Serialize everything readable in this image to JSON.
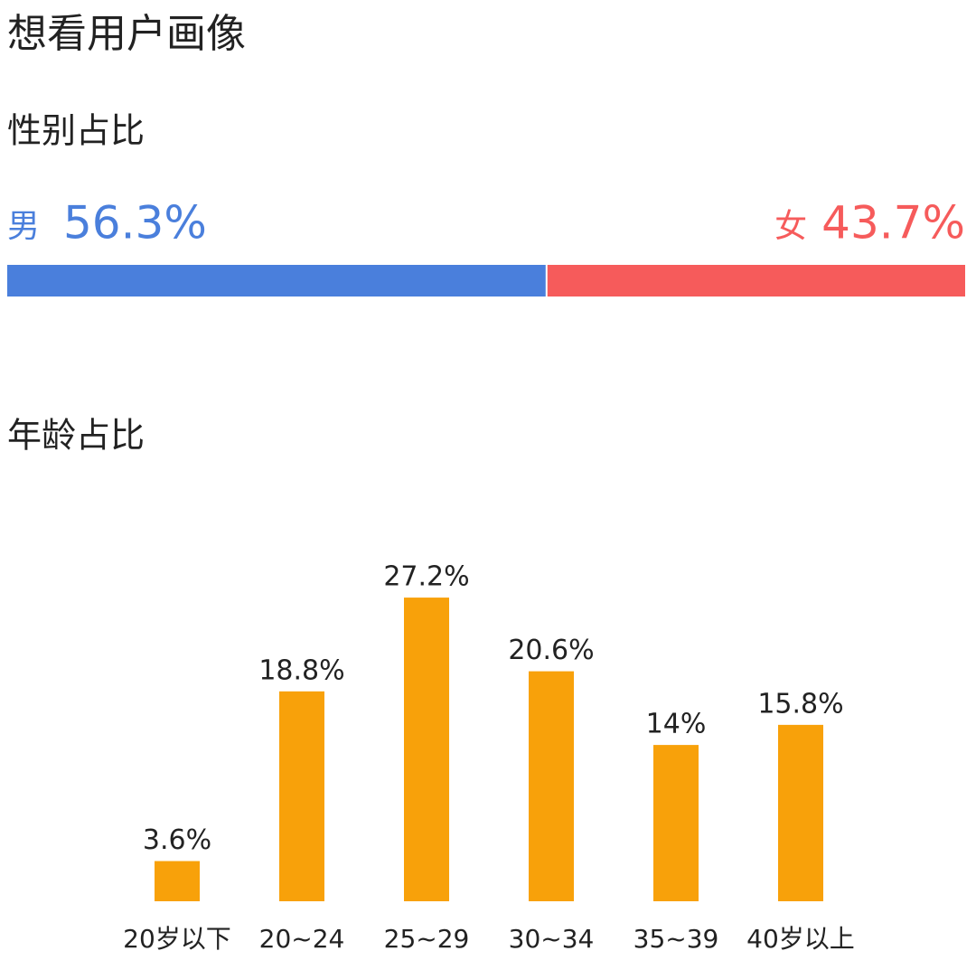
{
  "title": "想看用户画像",
  "chart_data": [
    {
      "type": "stacked-bar",
      "title": "性别占比",
      "series": [
        {
          "name": "男",
          "color": "#4a7fdc",
          "values": [
            56.3
          ],
          "value_labels": [
            "56.3%"
          ]
        },
        {
          "name": "女",
          "color": "#f65b5b",
          "values": [
            43.7
          ],
          "value_labels": [
            "43.7%"
          ]
        }
      ]
    },
    {
      "type": "bar",
      "title": "年龄占比",
      "categories": [
        "20岁以下",
        "20~24",
        "25~29",
        "30~34",
        "35~39",
        "40岁以上"
      ],
      "values": [
        3.6,
        18.8,
        27.2,
        20.6,
        14,
        15.8
      ],
      "value_labels": [
        "3.6%",
        "18.8%",
        "27.2%",
        "20.6%",
        "14%",
        "15.8%"
      ],
      "color": "#f8a10a"
    }
  ]
}
